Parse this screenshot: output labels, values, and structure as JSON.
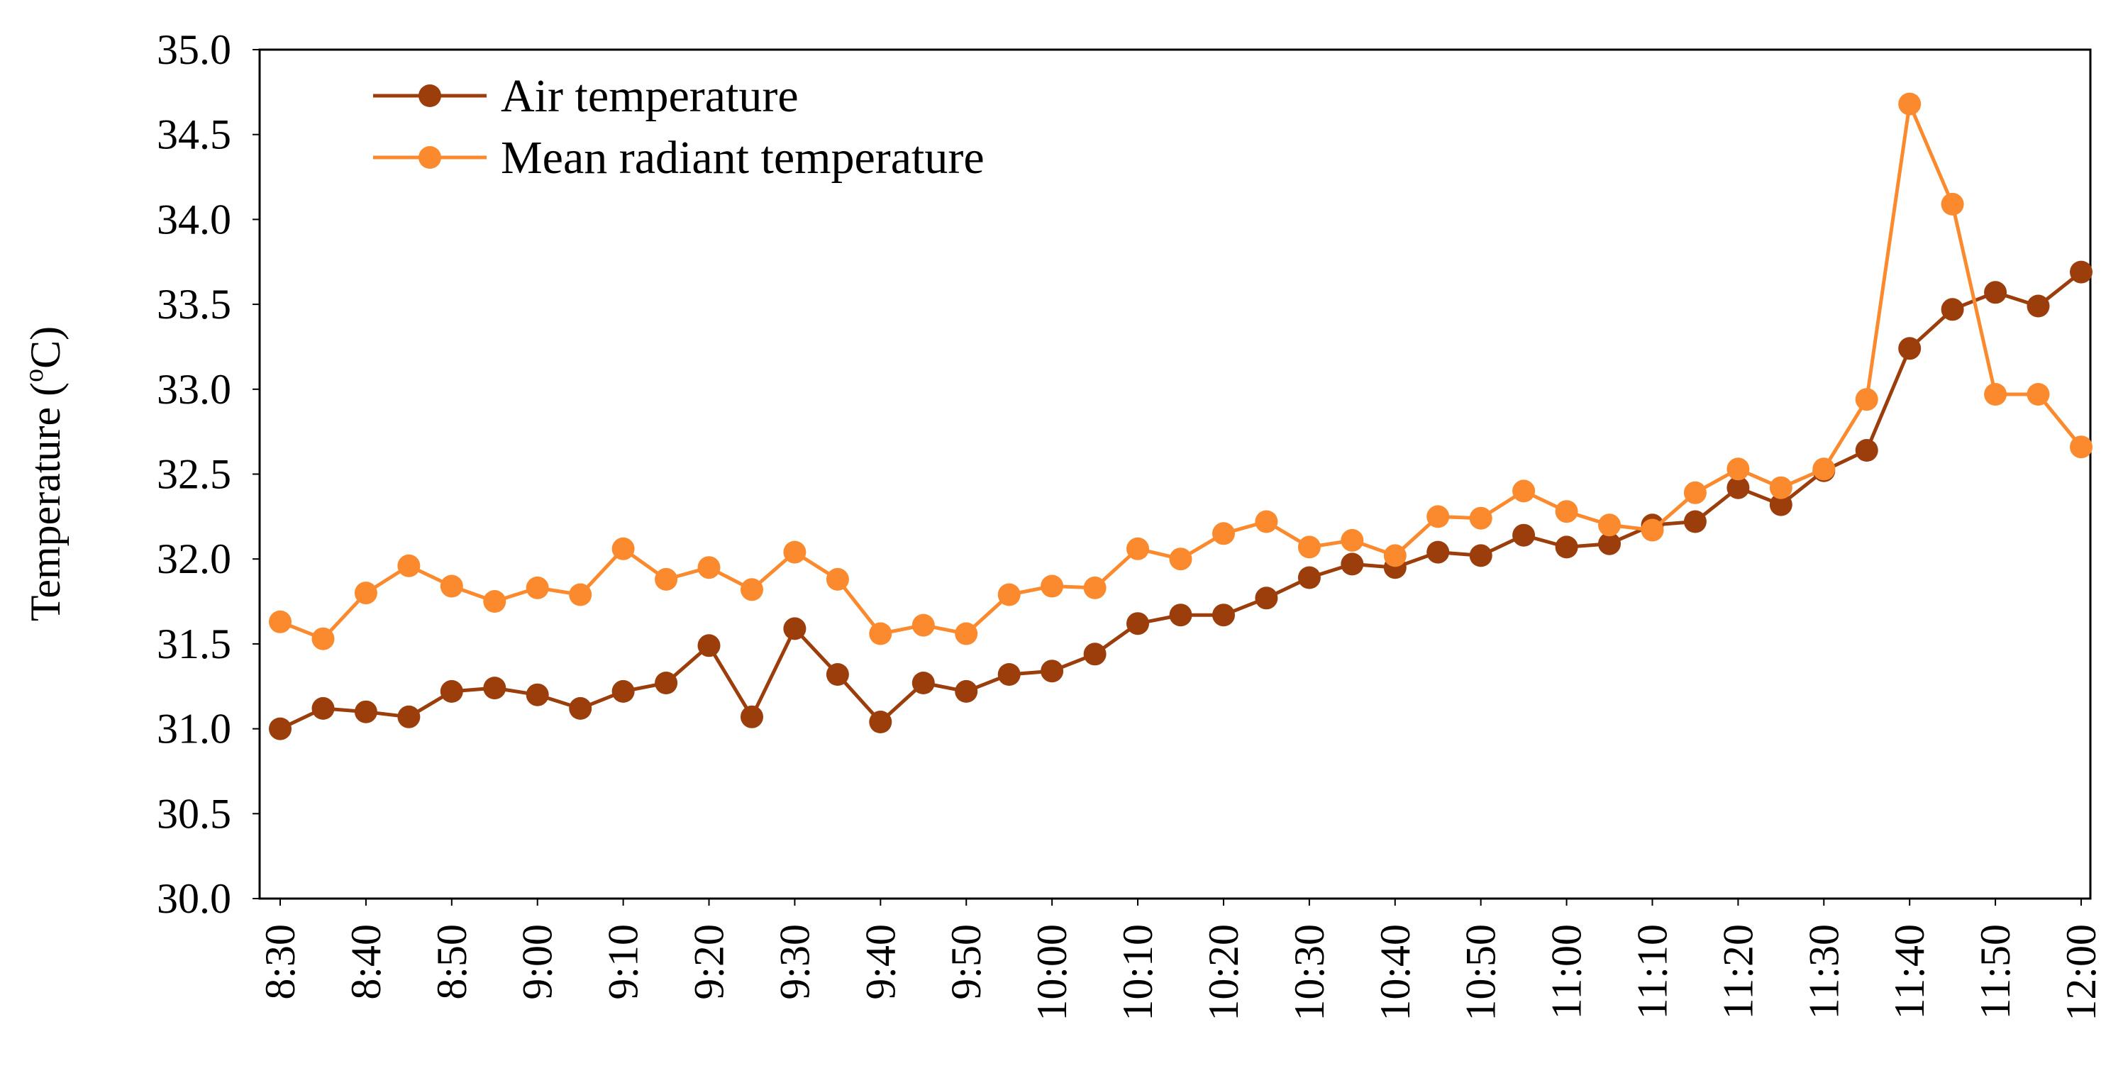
{
  "chart_data": {
    "type": "line",
    "title": "",
    "xlabel": "",
    "ylabel": "Temperature (",
    "ylabel_sup": "o",
    "ylabel_tail": "C)",
    "ylim": [
      30.0,
      35.0
    ],
    "yticks": [
      "30.0",
      "30.5",
      "31.0",
      "31.5",
      "32.0",
      "32.5",
      "33.0",
      "33.5",
      "34.0",
      "34.5",
      "35.0"
    ],
    "grid": false,
    "legend_position": "top-left",
    "categories": [
      "8:30",
      "8:35",
      "8:40",
      "8:45",
      "8:50",
      "8:55",
      "9:00",
      "9:05",
      "9:10",
      "9:15",
      "9:20",
      "9:25",
      "9:30",
      "9:35",
      "9:40",
      "9:45",
      "9:50",
      "9:55",
      "10:00",
      "10:05",
      "10:10",
      "10:15",
      "10:20",
      "10:25",
      "10:30",
      "10:35",
      "10:40",
      "10:45",
      "10:50",
      "10:55",
      "11:00",
      "11:05",
      "11:10",
      "11:15",
      "11:20",
      "11:25",
      "11:30",
      "11:35",
      "11:40",
      "11:45",
      "11:50",
      "11:55",
      "12:00"
    ],
    "tick_labels": [
      "8:30",
      "8:40",
      "8:50",
      "9:00",
      "9:10",
      "9:20",
      "9:30",
      "9:40",
      "9:50",
      "10:00",
      "10:10",
      "10:20",
      "10:30",
      "10:40",
      "10:50",
      "11:00",
      "11:10",
      "11:20",
      "11:30",
      "11:40",
      "11:50",
      "12:00"
    ],
    "series": [
      {
        "name": "Air temperature",
        "color": "#9C3D0C",
        "values": [
          31.0,
          31.12,
          31.1,
          31.07,
          31.22,
          31.24,
          31.2,
          31.12,
          31.22,
          31.27,
          31.49,
          31.07,
          31.59,
          31.32,
          31.04,
          31.27,
          31.22,
          31.32,
          31.34,
          31.44,
          31.62,
          31.67,
          31.67,
          31.77,
          31.89,
          31.97,
          31.95,
          32.04,
          32.02,
          32.14,
          32.07,
          32.09,
          32.2,
          32.22,
          32.42,
          32.32,
          32.52,
          32.64,
          33.24,
          33.47,
          33.57,
          33.49,
          33.69
        ]
      },
      {
        "name": "Mean radiant temperature",
        "color": "#FB8A2E",
        "values": [
          31.63,
          31.53,
          31.8,
          31.96,
          31.84,
          31.75,
          31.83,
          31.79,
          32.06,
          31.88,
          31.95,
          31.82,
          32.04,
          31.88,
          31.56,
          31.61,
          31.56,
          31.79,
          31.84,
          31.83,
          32.06,
          32.0,
          32.15,
          32.22,
          32.07,
          32.11,
          32.02,
          32.25,
          32.24,
          32.4,
          32.28,
          32.2,
          32.17,
          32.39,
          32.53,
          32.42,
          32.53,
          32.94,
          34.68,
          34.09,
          32.97,
          32.97,
          32.66
        ]
      }
    ]
  }
}
